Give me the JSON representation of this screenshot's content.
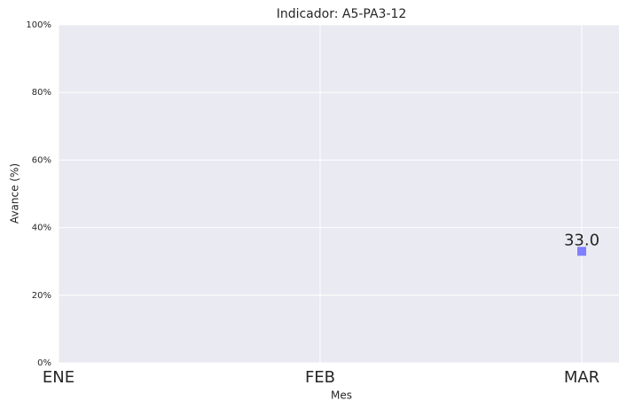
{
  "chart_data": {
    "type": "scatter",
    "title": "Indicador: A5-PA3-12",
    "x_label": "Mes",
    "y_label": "Avance (%)",
    "categories": [
      "ENE",
      "FEB",
      "MAR"
    ],
    "values": [
      null,
      null,
      33
    ],
    "value_labels": [
      null,
      null,
      "33.0"
    ],
    "color": "#7f7fff",
    "ylim": [
      0,
      100
    ],
    "yticks": [
      {
        "value": 0,
        "label": "0%"
      },
      {
        "value": 20,
        "label": "20%"
      },
      {
        "value": 40,
        "label": "40%"
      },
      {
        "value": 60,
        "label": "60%"
      },
      {
        "value": 80,
        "label": "80%"
      },
      {
        "value": 100,
        "label": "100%"
      }
    ],
    "grid": true
  }
}
